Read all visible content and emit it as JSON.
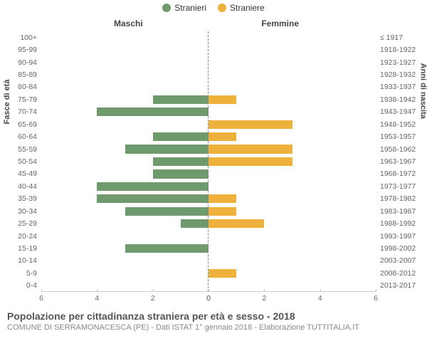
{
  "chart": {
    "type": "population-pyramid",
    "legend": [
      {
        "label": "Stranieri",
        "color": "#6f9a6e"
      },
      {
        "label": "Straniere",
        "color": "#edb13c"
      }
    ],
    "headers": {
      "left": "Maschi",
      "right": "Femmine"
    },
    "yaxis_left_title": "Fasce di età",
    "yaxis_right_title": "Anni di nascita",
    "xmax": 6,
    "xticks": [
      6,
      4,
      2,
      0,
      0,
      2,
      4,
      6
    ],
    "bar_colors": {
      "left": "#6f9a6e",
      "right": "#edb13c"
    },
    "background_color": "#ffffff",
    "grid_color": "#cccccc",
    "rows": [
      {
        "age": "100+",
        "birth": "≤ 1917",
        "m": 0,
        "f": 0
      },
      {
        "age": "95-99",
        "birth": "1918-1922",
        "m": 0,
        "f": 0
      },
      {
        "age": "90-94",
        "birth": "1923-1927",
        "m": 0,
        "f": 0
      },
      {
        "age": "85-89",
        "birth": "1928-1932",
        "m": 0,
        "f": 0
      },
      {
        "age": "80-84",
        "birth": "1933-1937",
        "m": 0,
        "f": 0
      },
      {
        "age": "75-79",
        "birth": "1938-1942",
        "m": 2,
        "f": 1
      },
      {
        "age": "70-74",
        "birth": "1943-1947",
        "m": 4,
        "f": 0
      },
      {
        "age": "65-69",
        "birth": "1948-1952",
        "m": 0,
        "f": 3
      },
      {
        "age": "60-64",
        "birth": "1953-1957",
        "m": 2,
        "f": 1
      },
      {
        "age": "55-59",
        "birth": "1958-1962",
        "m": 3,
        "f": 3
      },
      {
        "age": "50-54",
        "birth": "1963-1967",
        "m": 2,
        "f": 3
      },
      {
        "age": "45-49",
        "birth": "1968-1972",
        "m": 2,
        "f": 0
      },
      {
        "age": "40-44",
        "birth": "1973-1977",
        "m": 4,
        "f": 0
      },
      {
        "age": "35-39",
        "birth": "1978-1982",
        "m": 4,
        "f": 1
      },
      {
        "age": "30-34",
        "birth": "1983-1987",
        "m": 3,
        "f": 1
      },
      {
        "age": "25-29",
        "birth": "1988-1992",
        "m": 1,
        "f": 2
      },
      {
        "age": "20-24",
        "birth": "1993-1997",
        "m": 0,
        "f": 0
      },
      {
        "age": "15-19",
        "birth": "1998-2002",
        "m": 3,
        "f": 0
      },
      {
        "age": "10-14",
        "birth": "2003-2007",
        "m": 0,
        "f": 0
      },
      {
        "age": "5-9",
        "birth": "2008-2012",
        "m": 0,
        "f": 1
      },
      {
        "age": "0-4",
        "birth": "2013-2017",
        "m": 0,
        "f": 0
      }
    ],
    "label_fontsize": 10.5,
    "title_fontsize": 14
  },
  "footer": {
    "title": "Popolazione per cittadinanza straniera per età e sesso - 2018",
    "subtitle": "COMUNE DI SERRAMONACESCA (PE) - Dati ISTAT 1° gennaio 2018 - Elaborazione TUTTITALIA.IT"
  }
}
